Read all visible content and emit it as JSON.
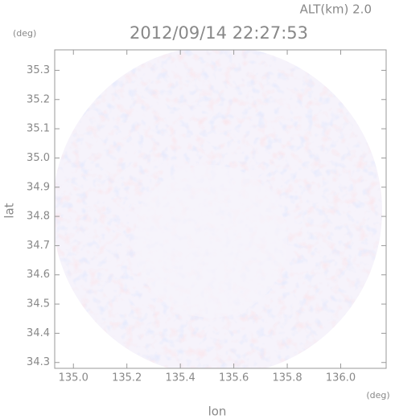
{
  "chart_data": {
    "type": "image",
    "title": "2012/09/14 22:27:53",
    "annotation": "ALT(km) 2.0",
    "x_label": "lon",
    "x_unit": "(deg)",
    "y_label": "lat",
    "y_unit": "(deg)",
    "xlim": [
      134.93,
      136.17
    ],
    "ylim": [
      34.28,
      35.37
    ],
    "xticks": [
      {
        "value": 135,
        "label": "135.0"
      },
      135.2,
      135.4,
      135.6,
      135.8,
      {
        "value": 136,
        "label": "136.0"
      }
    ],
    "yticks": [
      34.3,
      34.4,
      34.5,
      34.6,
      34.7,
      34.8,
      34.9,
      {
        "value": 35,
        "label": "35.0"
      },
      35.1,
      35.2,
      35.3
    ]
  }
}
